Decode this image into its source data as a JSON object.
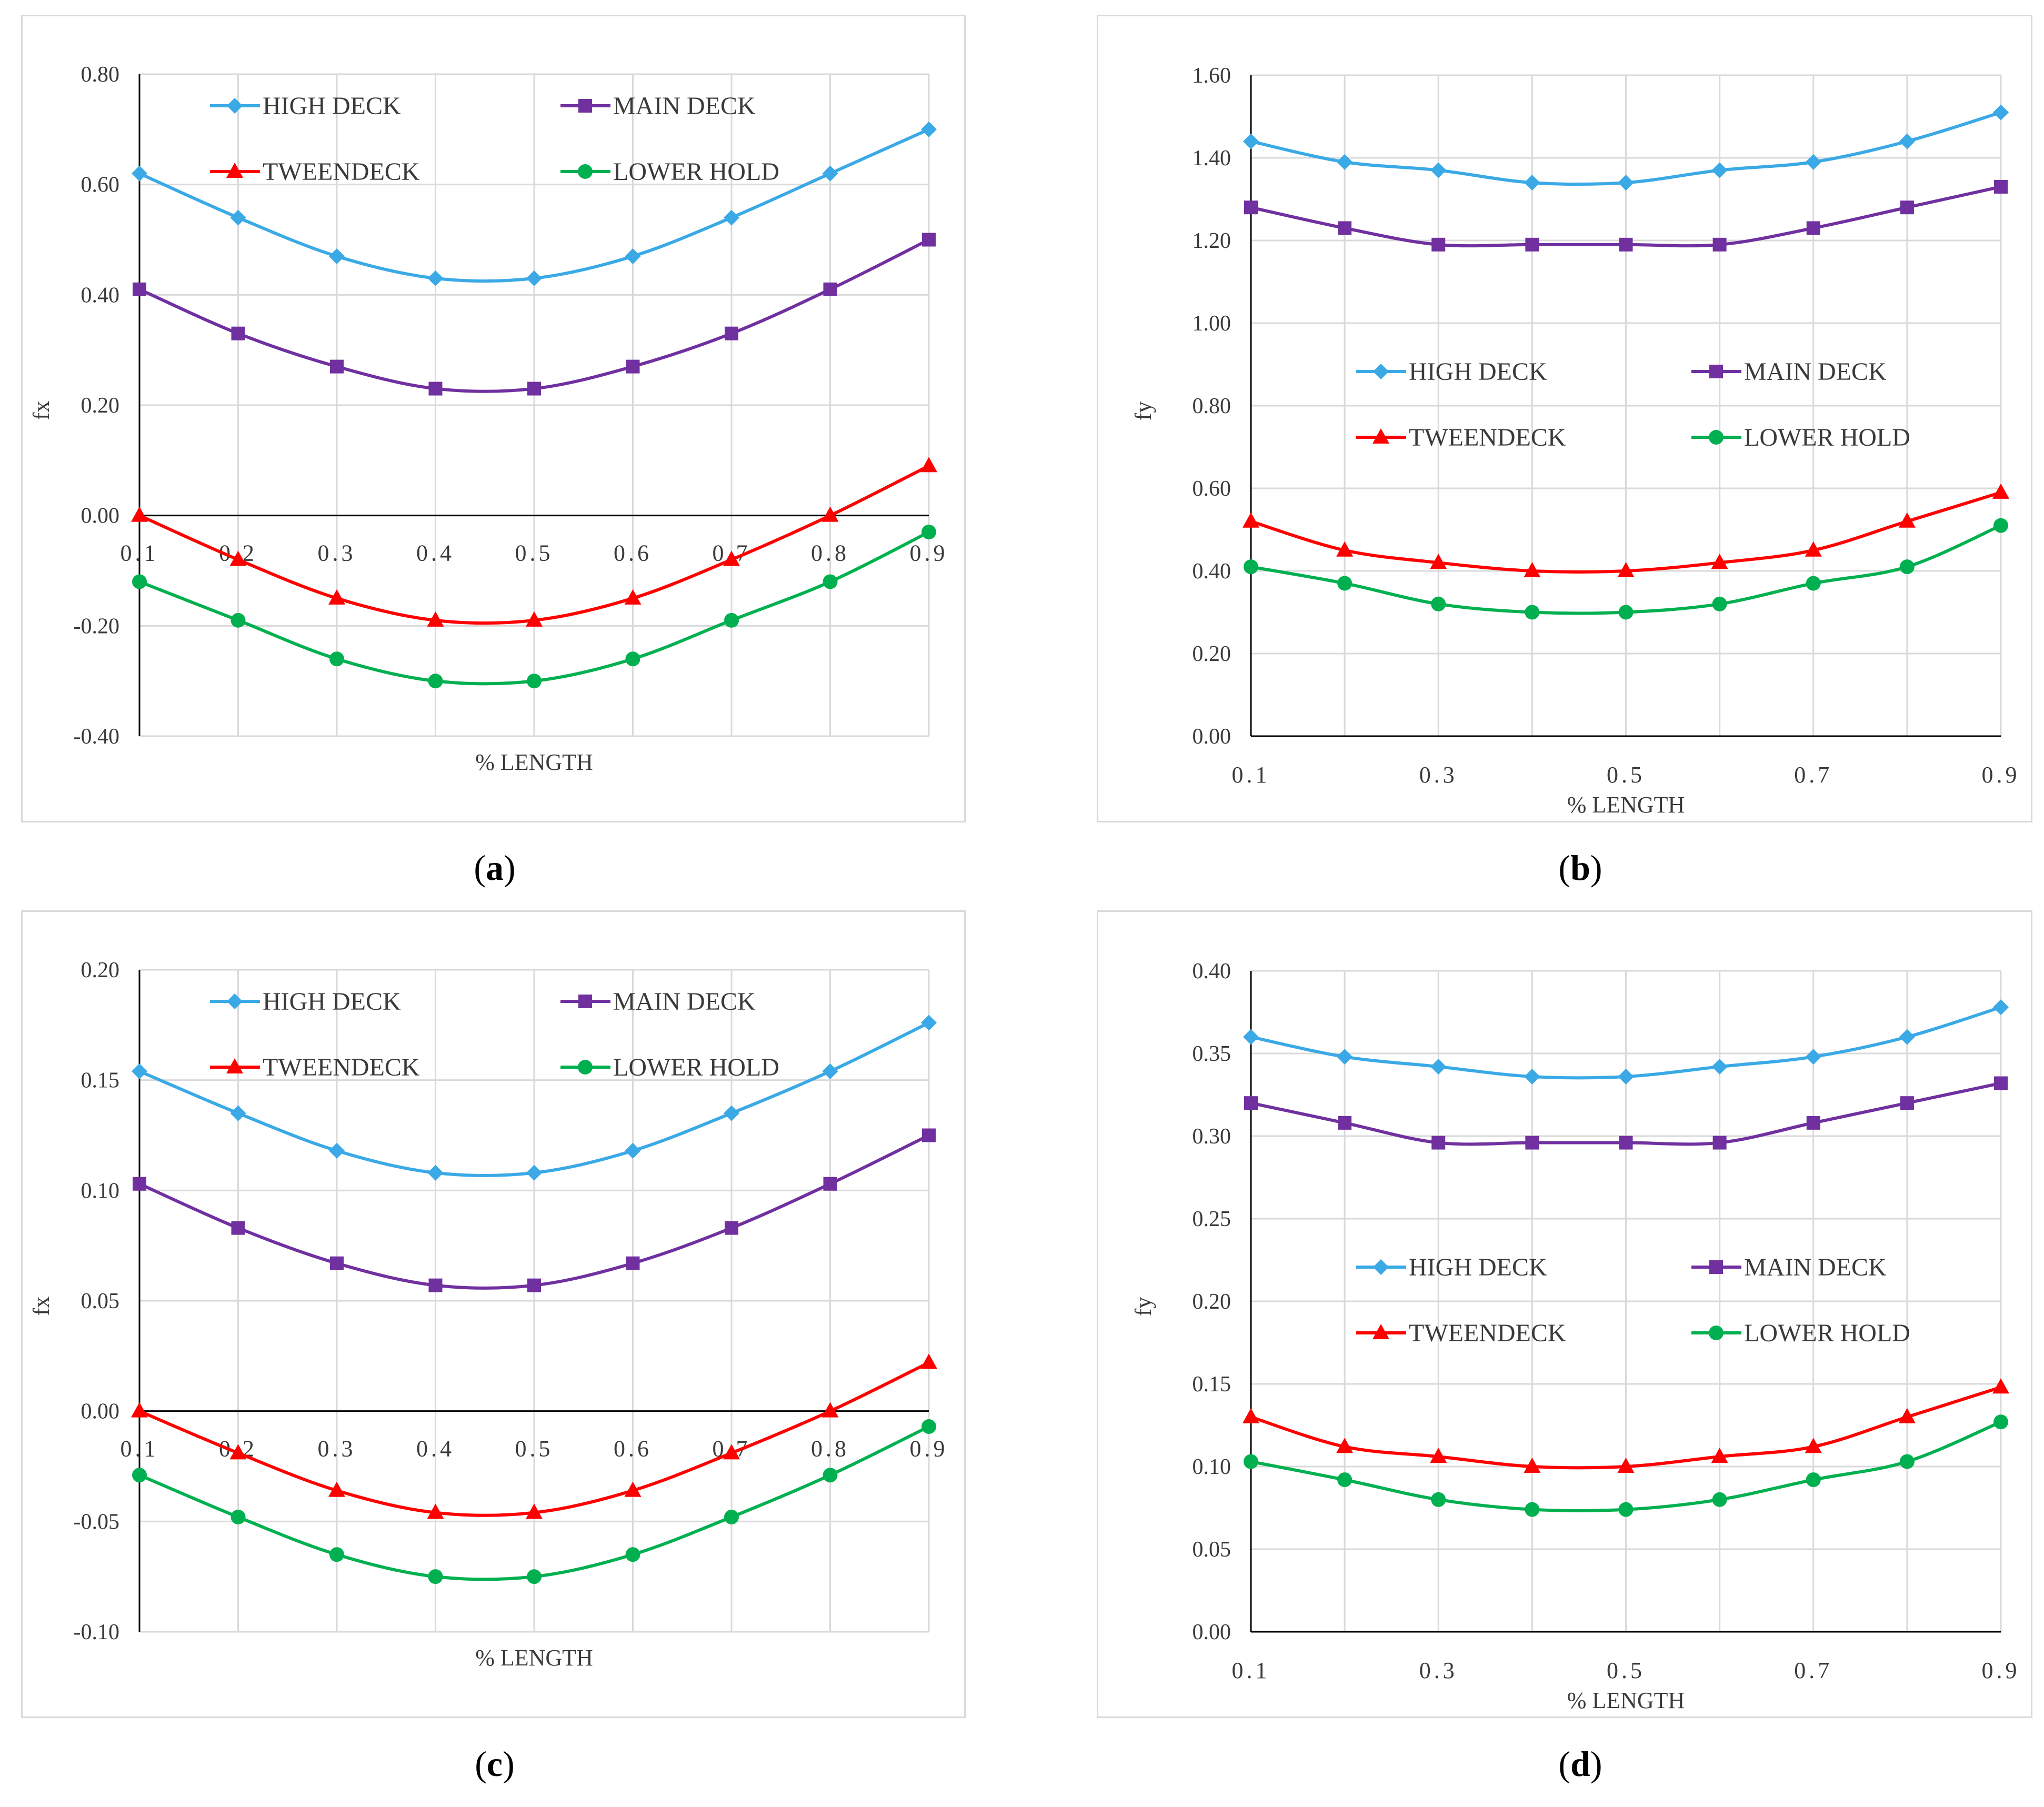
{
  "colors": {
    "high_deck": "#3aa9e6",
    "main_deck": "#7030a0",
    "tweendeck": "#ff0000",
    "lower_hold": "#00b050",
    "grid": "#d9d9d9",
    "axis": "#000000"
  },
  "captions": [
    "a",
    "b",
    "c",
    "d"
  ],
  "chart_data": [
    {
      "type": "line",
      "panel": "a",
      "xlabel": "% LENGTH",
      "ylabel": "fx",
      "x": [
        0.1,
        0.2,
        0.3,
        0.4,
        0.5,
        0.6,
        0.7,
        0.8,
        0.9
      ],
      "x_tick_labels": [
        "0.1",
        "0.2",
        "0.3",
        "0.4",
        "0.5",
        "0.6",
        "0.7",
        "0.8",
        "0.9"
      ],
      "ylim": [
        -0.4,
        0.8
      ],
      "y_ticks": [
        -0.4,
        -0.2,
        0,
        0.2,
        0.4,
        0.6,
        0.8
      ],
      "y_tick_labels": [
        "-0.40",
        "-0.20",
        "0.00",
        "0.20",
        "0.40",
        "0.60",
        "0.80"
      ],
      "legend_position": "top",
      "series": [
        {
          "name": "HIGH DECK",
          "marker": "diamond",
          "values": [
            0.62,
            0.54,
            0.47,
            0.43,
            0.43,
            0.47,
            0.54,
            0.62,
            0.7
          ]
        },
        {
          "name": "MAIN DECK",
          "marker": "square",
          "values": [
            0.41,
            0.33,
            0.27,
            0.23,
            0.23,
            0.27,
            0.33,
            0.41,
            0.5
          ]
        },
        {
          "name": "TWEENDECK",
          "marker": "triangle",
          "values": [
            0.0,
            -0.08,
            -0.15,
            -0.19,
            -0.19,
            -0.15,
            -0.08,
            0.0,
            0.09
          ]
        },
        {
          "name": "LOWER HOLD",
          "marker": "circle",
          "values": [
            -0.12,
            -0.19,
            -0.26,
            -0.3,
            -0.3,
            -0.26,
            -0.19,
            -0.12,
            -0.03
          ]
        }
      ]
    },
    {
      "type": "line",
      "panel": "b",
      "xlabel": "% LENGTH",
      "ylabel": "fy",
      "x": [
        0.1,
        0.2,
        0.3,
        0.4,
        0.5,
        0.6,
        0.7,
        0.8,
        0.9
      ],
      "x_tick_labels": [
        "0.1",
        "",
        "0.3",
        "",
        "0.5",
        "",
        "0.7",
        "",
        "0.9"
      ],
      "ylim": [
        0,
        1.6
      ],
      "y_ticks": [
        0,
        0.2,
        0.4,
        0.6,
        0.8,
        1.0,
        1.2,
        1.4,
        1.6
      ],
      "y_tick_labels": [
        "0.00",
        "0.20",
        "0.40",
        "0.60",
        "0.80",
        "1.00",
        "1.20",
        "1.40",
        "1.60"
      ],
      "legend_position": "middle",
      "series": [
        {
          "name": "HIGH DECK",
          "marker": "diamond",
          "values": [
            1.44,
            1.39,
            1.37,
            1.34,
            1.34,
            1.37,
            1.39,
            1.44,
            1.51
          ]
        },
        {
          "name": "MAIN DECK",
          "marker": "square",
          "values": [
            1.28,
            1.23,
            1.19,
            1.19,
            1.19,
            1.19,
            1.23,
            1.28,
            1.33
          ]
        },
        {
          "name": "TWEENDECK",
          "marker": "triangle",
          "values": [
            0.52,
            0.45,
            0.42,
            0.4,
            0.4,
            0.42,
            0.45,
            0.52,
            0.59
          ]
        },
        {
          "name": "LOWER HOLD",
          "marker": "circle",
          "values": [
            0.41,
            0.37,
            0.32,
            0.3,
            0.3,
            0.32,
            0.37,
            0.41,
            0.51
          ]
        }
      ]
    },
    {
      "type": "line",
      "panel": "c",
      "xlabel": "% LENGTH",
      "ylabel": "fx",
      "x": [
        0.1,
        0.2,
        0.3,
        0.4,
        0.5,
        0.6,
        0.7,
        0.8,
        0.9
      ],
      "x_tick_labels": [
        "0.1",
        "0.2",
        "0.3",
        "0.4",
        "0.5",
        "0.6",
        "0.7",
        "0.8",
        "0.9"
      ],
      "ylim": [
        -0.1,
        0.2
      ],
      "y_ticks": [
        -0.1,
        -0.05,
        0,
        0.05,
        0.1,
        0.15,
        0.2
      ],
      "y_tick_labels": [
        "-0.10",
        "-0.05",
        "0.00",
        "0.05",
        "0.10",
        "0.15",
        "0.20"
      ],
      "legend_position": "top",
      "series": [
        {
          "name": "HIGH DECK",
          "marker": "diamond",
          "values": [
            0.154,
            0.135,
            0.118,
            0.108,
            0.108,
            0.118,
            0.135,
            0.154,
            0.176
          ]
        },
        {
          "name": "MAIN DECK",
          "marker": "square",
          "values": [
            0.103,
            0.083,
            0.067,
            0.057,
            0.057,
            0.067,
            0.083,
            0.103,
            0.125
          ]
        },
        {
          "name": "TWEENDECK",
          "marker": "triangle",
          "values": [
            0.0,
            -0.019,
            -0.036,
            -0.046,
            -0.046,
            -0.036,
            -0.019,
            0.0,
            0.022
          ]
        },
        {
          "name": "LOWER HOLD",
          "marker": "circle",
          "values": [
            -0.029,
            -0.048,
            -0.065,
            -0.075,
            -0.075,
            -0.065,
            -0.048,
            -0.029,
            -0.007
          ]
        }
      ]
    },
    {
      "type": "line",
      "panel": "d",
      "xlabel": "% LENGTH",
      "ylabel": "fy",
      "x": [
        0.1,
        0.2,
        0.3,
        0.4,
        0.5,
        0.6,
        0.7,
        0.8,
        0.9
      ],
      "x_tick_labels": [
        "0.1",
        "",
        "0.3",
        "",
        "0.5",
        "",
        "0.7",
        "",
        "0.9"
      ],
      "ylim": [
        0,
        0.4
      ],
      "y_ticks": [
        0,
        0.05,
        0.1,
        0.15,
        0.2,
        0.25,
        0.3,
        0.35,
        0.4
      ],
      "y_tick_labels": [
        "0.00",
        "0.05",
        "0.10",
        "0.15",
        "0.20",
        "0.25",
        "0.30",
        "0.35",
        "0.40"
      ],
      "legend_position": "middle",
      "series": [
        {
          "name": "HIGH DECK",
          "marker": "diamond",
          "values": [
            0.36,
            0.348,
            0.342,
            0.336,
            0.336,
            0.342,
            0.348,
            0.36,
            0.378
          ]
        },
        {
          "name": "MAIN DECK",
          "marker": "square",
          "values": [
            0.32,
            0.308,
            0.296,
            0.296,
            0.296,
            0.296,
            0.308,
            0.32,
            0.332
          ]
        },
        {
          "name": "TWEENDECK",
          "marker": "triangle",
          "values": [
            0.13,
            0.112,
            0.106,
            0.1,
            0.1,
            0.106,
            0.112,
            0.13,
            0.148
          ]
        },
        {
          "name": "LOWER HOLD",
          "marker": "circle",
          "values": [
            0.103,
            0.092,
            0.08,
            0.074,
            0.074,
            0.08,
            0.092,
            0.103,
            0.127
          ]
        }
      ]
    }
  ]
}
